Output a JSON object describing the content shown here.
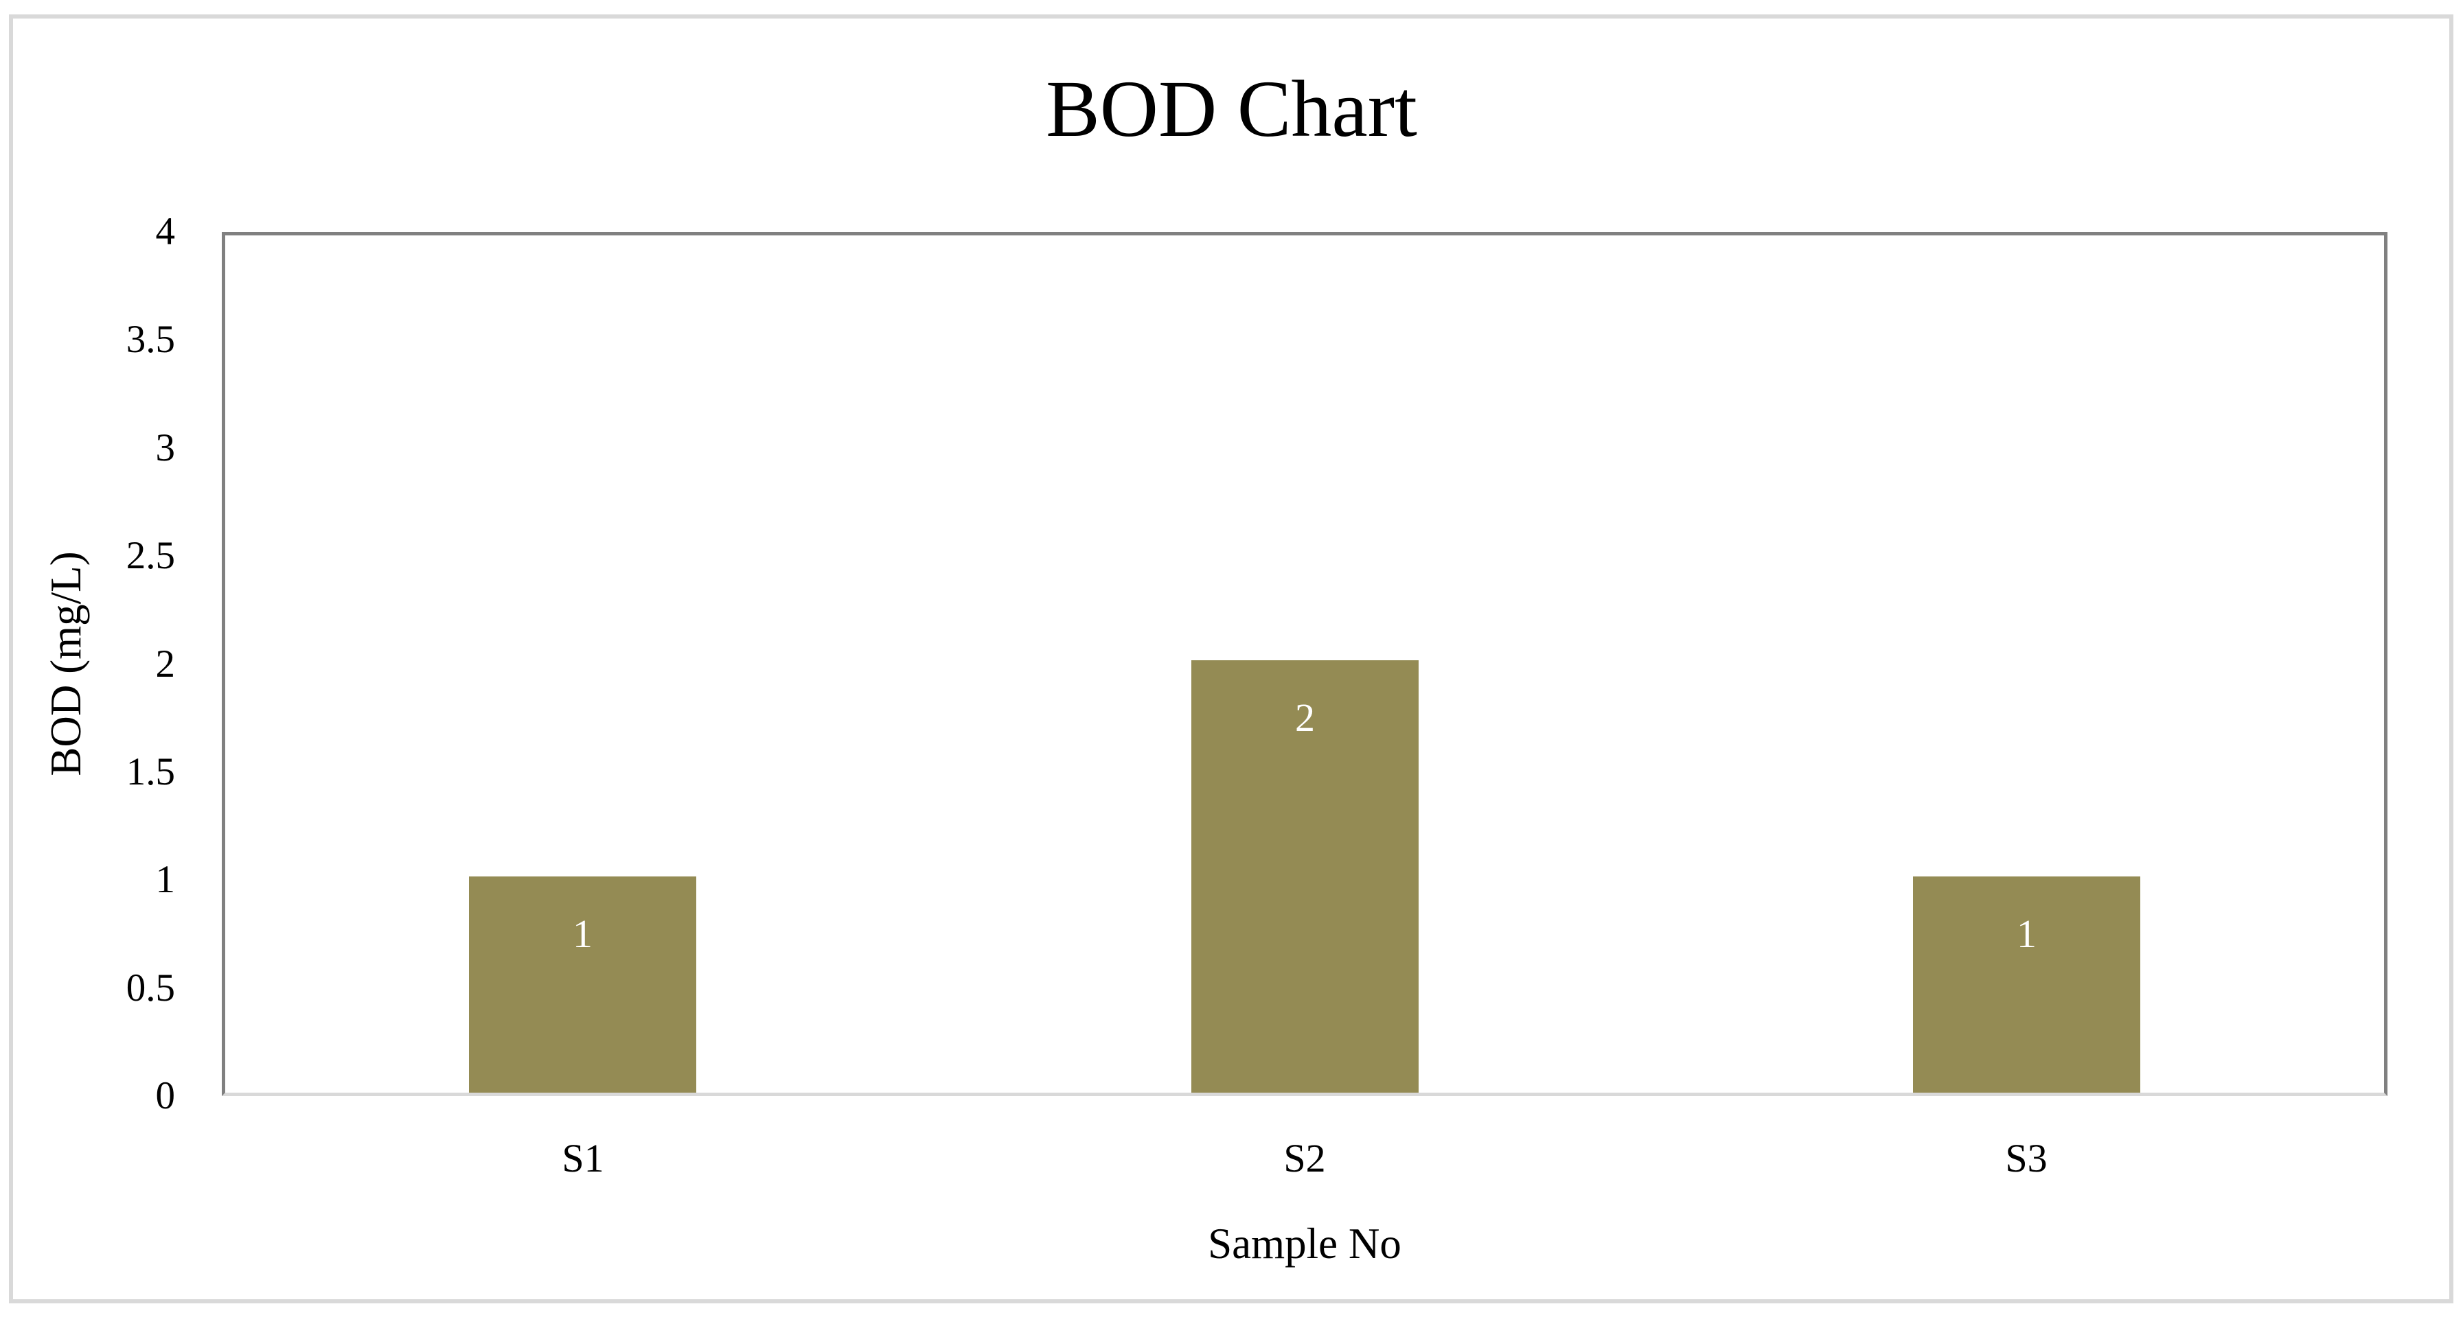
{
  "chart_data": {
    "type": "bar",
    "title": "BOD Chart",
    "categories": [
      "S1",
      "S2",
      "S3"
    ],
    "values": [
      1,
      2,
      1
    ],
    "data_labels": [
      "1",
      "2",
      "1"
    ],
    "xlabel": "Sample No",
    "ylabel": "BOD (mg/L)",
    "ylim": [
      0,
      4
    ],
    "ytick_interval": 0.5,
    "ytick_labels": [
      "0",
      "0.5",
      "1",
      "1.5",
      "2",
      "2.5",
      "3",
      "3.5",
      "4"
    ],
    "grid": false,
    "legend": "none",
    "series_name": "BOD"
  },
  "colors": {
    "bar_fill": "#948B54",
    "data_label_text": "#FFFFFF",
    "plot_border": "#808080",
    "x_axis_line": "#D9D9D9",
    "chart_outer_border": "#D9D9D9",
    "text": "#000000",
    "background": "#FFFFFF"
  }
}
